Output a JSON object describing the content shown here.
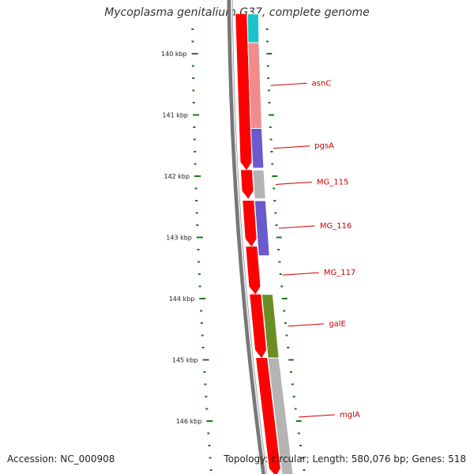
{
  "title": "Mycoplasma genitalium G37, complete genome",
  "footer": {
    "accession": "Accession: NC_000908",
    "topology": "Topology: circular; Length: 580,076 bp; Genes: 518"
  },
  "axis": {
    "unit": "kbp",
    "ticks": [
      {
        "label": "140 kbp",
        "value": 140
      },
      {
        "label": "141 kbp",
        "value": 141
      },
      {
        "label": "142 kbp",
        "value": 142
      },
      {
        "label": "143 kbp",
        "value": 143
      },
      {
        "label": "144 kbp",
        "value": 144
      },
      {
        "label": "145 kbp",
        "value": 145
      },
      {
        "label": "146 kbp",
        "value": 146
      }
    ]
  },
  "colors": {
    "axis_ticks": "#1a7a1a",
    "backbone": "#777777",
    "forward_features": "#ff0000",
    "label_lines": "#cc0000",
    "label_text": "#cc0000"
  },
  "genes": [
    {
      "name": "",
      "start": 139.35,
      "end": 139.82,
      "color": "#19c3c8"
    },
    {
      "name": "asnC",
      "start": 139.82,
      "end": 141.22,
      "color": "#f08c8c"
    },
    {
      "name": "pgsA",
      "start": 141.22,
      "end": 141.87,
      "color": "#6a5acd"
    },
    {
      "name": "MG_115",
      "start": 141.9,
      "end": 142.37,
      "color": "#b4b4b4"
    },
    {
      "name": "MG_116",
      "start": 142.4,
      "end": 143.3,
      "color": "#6a5acd"
    },
    {
      "name": "MG_117",
      "start": 143.3,
      "end": 143.93,
      "color": ""
    },
    {
      "name": "galE",
      "start": 143.93,
      "end": 144.97,
      "color": "#6b8e23"
    },
    {
      "name": "mglA",
      "start": 144.97,
      "end": 146.9,
      "color": "#b4b4b4"
    }
  ],
  "forward_features": [
    {
      "start": 139.35,
      "end": 141.9
    },
    {
      "start": 141.9,
      "end": 142.37
    },
    {
      "start": 142.4,
      "end": 143.15
    },
    {
      "start": 143.15,
      "end": 143.93
    },
    {
      "start": 143.93,
      "end": 144.97
    },
    {
      "start": 144.97,
      "end": 146.9
    }
  ]
}
